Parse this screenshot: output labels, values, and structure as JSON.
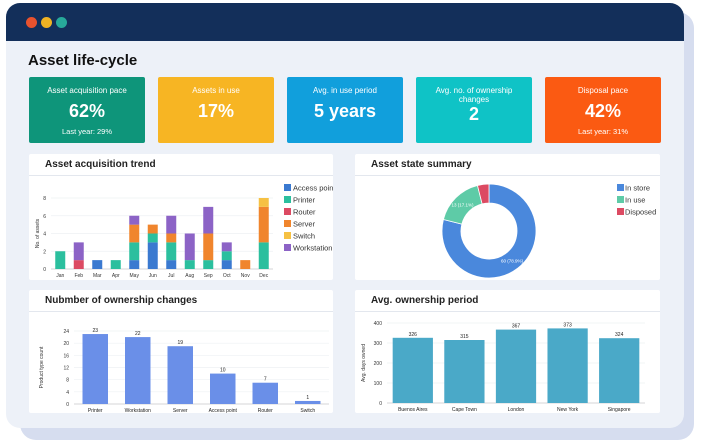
{
  "window": {
    "dots": [
      "#e8522e",
      "#f0b323",
      "#27a99a"
    ],
    "header_color": "#132f5a"
  },
  "page_title": "Asset life-cycle",
  "kpis": [
    {
      "label": "Asset acquisition pace",
      "value": "62%",
      "sub": "Last year: 29%",
      "color": "#0e957a"
    },
    {
      "label": "Assets in use",
      "value": "17%",
      "sub": "",
      "color": "#f7b523"
    },
    {
      "label": "Avg. in use period",
      "value": "5 years",
      "sub": "",
      "color": "#119fdc"
    },
    {
      "label": "Avg. no. of ownership changes",
      "value": "2",
      "sub": "",
      "color": "#0fc3c6"
    },
    {
      "label": "Disposal pace",
      "value": "42%",
      "sub": "Last year: 31%",
      "color": "#fb5a12"
    }
  ],
  "chart_data": [
    {
      "type": "bar",
      "stacked": true,
      "title": "Asset acquisition trend",
      "ylabel": "No. of assets",
      "ylim": [
        0,
        8
      ],
      "yticks": [
        0,
        2,
        4,
        6,
        8
      ],
      "legend": "right",
      "categories": [
        "Jan",
        "Feb",
        "Mar",
        "Apr",
        "May",
        "Jun",
        "Jul",
        "Aug",
        "Sep",
        "Oct",
        "Nov",
        "Dec"
      ],
      "series": [
        {
          "name": "Access point",
          "color": "#3a79d0",
          "values": [
            0,
            0,
            1,
            0,
            1,
            3,
            1,
            0,
            0,
            1,
            0,
            0
          ]
        },
        {
          "name": "Printer",
          "color": "#2bbf9e",
          "values": [
            2,
            0,
            0,
            1,
            2,
            1,
            2,
            1,
            1,
            1,
            0,
            3
          ]
        },
        {
          "name": "Router",
          "color": "#dc4a62",
          "values": [
            0,
            1,
            0,
            0,
            0,
            0,
            0,
            0,
            0,
            0,
            0,
            0
          ]
        },
        {
          "name": "Server",
          "color": "#f0852d",
          "values": [
            0,
            0,
            0,
            0,
            2,
            1,
            1,
            0,
            3,
            0,
            1,
            4
          ]
        },
        {
          "name": "Switch",
          "color": "#f6c143",
          "values": [
            0,
            0,
            0,
            0,
            0,
            0,
            0,
            0,
            0,
            0,
            0,
            1
          ]
        },
        {
          "name": "Workstation",
          "color": "#8c63c6",
          "values": [
            0,
            2,
            0,
            0,
            1,
            0,
            2,
            3,
            3,
            1,
            0,
            0
          ]
        }
      ]
    },
    {
      "type": "pie",
      "donut": true,
      "title": "Asset state summary",
      "legend": "right",
      "slices": [
        {
          "name": "In store",
          "value": 60,
          "label": "60 (78.9%)",
          "color": "#4a88dc"
        },
        {
          "name": "In use",
          "value": 13,
          "label": "13 (17.1%)",
          "color": "#5ecba7"
        },
        {
          "name": "Disposed",
          "value": 3,
          "label": "",
          "color": "#dc4a62"
        }
      ]
    },
    {
      "type": "bar",
      "title": "Nubmber of ownership changes",
      "ylabel": "Product type count",
      "ylim": [
        0,
        24
      ],
      "yticks": [
        0,
        4,
        8,
        12,
        16,
        20,
        24
      ],
      "color": "#6a8fe8",
      "categories": [
        "Printer",
        "Workstation",
        "Server",
        "Access point",
        "Router",
        "Switch"
      ],
      "values": [
        23,
        22,
        19,
        10,
        7,
        1
      ]
    },
    {
      "type": "bar",
      "title": "Avg. ownership period",
      "ylabel": "Avg. days owned",
      "ylim": [
        0,
        400
      ],
      "yticks": [
        0,
        100,
        200,
        300,
        400
      ],
      "color": "#4aa9c8",
      "categories": [
        "Buenos Aires",
        "Cape Town",
        "London",
        "New York",
        "Singapore"
      ],
      "values": [
        326,
        315,
        367,
        373,
        324
      ]
    }
  ]
}
